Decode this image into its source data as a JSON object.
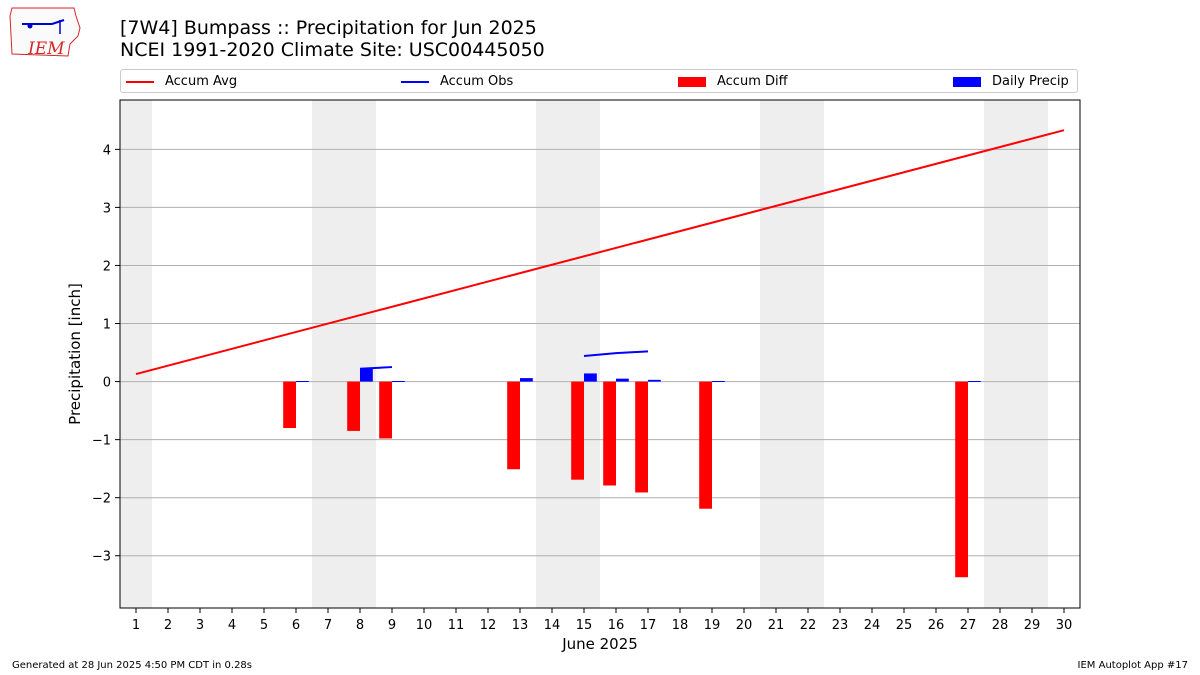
{
  "header": {
    "title_line1": "[7W4] Bumpass :: Precipitation for Jun 2025",
    "title_line2": "NCEI 1991-2020 Climate Site: USC00445050"
  },
  "logo": {
    "text": "IEM"
  },
  "footer": {
    "left": "Generated at 28 Jun 2025 4:50 PM CDT in 0.28s",
    "right": "IEM Autoplot App #17"
  },
  "colors": {
    "avg": "#ff0000",
    "obs": "#0000ff",
    "diff": "#ff0000",
    "daily": "#0000ff",
    "weekend": "#eeeeee",
    "grid": "#b0b0b0"
  },
  "chart_data": {
    "type": "bar",
    "title": "[7W4] Bumpass :: Precipitation for Jun 2025",
    "xlabel": "June 2025",
    "ylabel": "Precipitation [inch]",
    "xlim": [
      0.5,
      30.5
    ],
    "ylim": [
      -3.9,
      4.85
    ],
    "yticks": [
      -3,
      -2,
      -1,
      0,
      1,
      2,
      3,
      4
    ],
    "xticks": [
      1,
      2,
      3,
      4,
      5,
      6,
      7,
      8,
      9,
      10,
      11,
      12,
      13,
      14,
      15,
      16,
      17,
      18,
      19,
      20,
      21,
      22,
      23,
      24,
      25,
      26,
      27,
      28,
      29,
      30
    ],
    "legend": [
      "Accum Avg",
      "Accum Obs",
      "Accum Diff",
      "Daily Precip"
    ],
    "weekend_shading": [
      [
        0.5,
        1.5
      ],
      [
        6.5,
        8.5
      ],
      [
        13.5,
        15.5
      ],
      [
        20.5,
        22.5
      ],
      [
        27.5,
        29.5
      ]
    ],
    "series": [
      {
        "name": "Accum Avg",
        "kind": "line",
        "x": [
          1,
          30
        ],
        "values": [
          0.13,
          4.33
        ]
      },
      {
        "name": "Accum Obs",
        "kind": "line",
        "segments": [
          {
            "x": [
              8,
              9
            ],
            "values": [
              0.22,
              0.25
            ]
          },
          {
            "x": [
              15,
              16,
              17
            ],
            "values": [
              0.44,
              0.49,
              0.52
            ]
          }
        ]
      },
      {
        "name": "Accum Diff",
        "kind": "bar",
        "x": [
          6,
          8,
          9,
          13,
          15,
          16,
          17,
          19,
          27
        ],
        "values": [
          -0.8,
          -0.85,
          -0.98,
          -1.51,
          -1.69,
          -1.79,
          -1.91,
          -2.19,
          -3.37
        ]
      },
      {
        "name": "Daily Precip",
        "kind": "bar",
        "x": [
          6,
          8,
          9,
          13,
          15,
          16,
          17,
          19,
          27
        ],
        "values": [
          0.01,
          0.22,
          0.01,
          0.06,
          0.14,
          0.05,
          0.03,
          0.01,
          0.01
        ]
      }
    ]
  }
}
